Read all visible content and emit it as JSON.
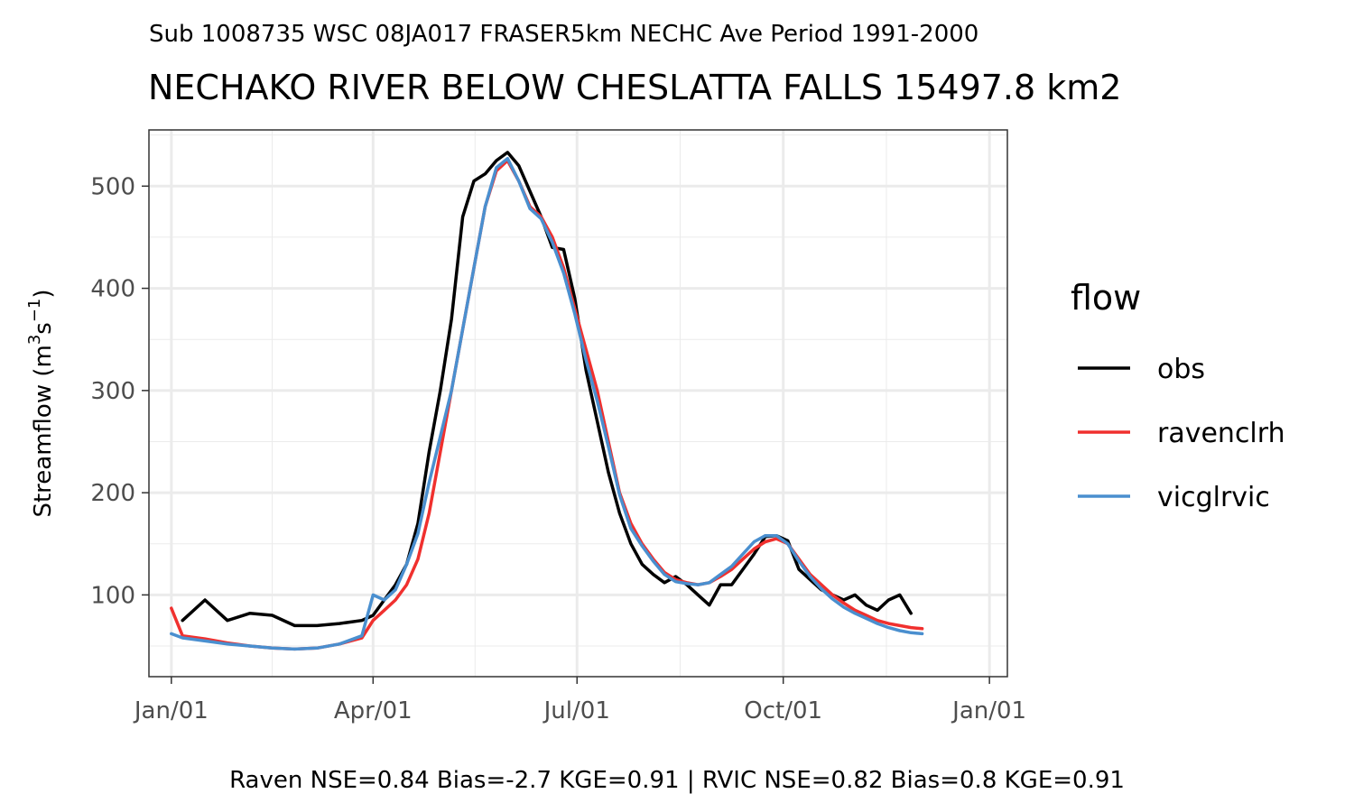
{
  "chart_data": {
    "type": "line",
    "subtitle": "Sub 1008735 WSC 08JA017 FRASER5km NECHC Ave Period 1991-2000",
    "title": "NECHAKO RIVER BELOW CHESLATTA FALLS 15497.8 km2",
    "ylabel": "Streamflow (m3s-1)",
    "ylabel_parts": {
      "prefix": "Streamflow (m",
      "sup1": "3",
      "mid": "s",
      "sup2": "−1",
      "suffix": ")"
    },
    "xlabel": "",
    "caption": "Raven NSE=0.84 Bias=-2.7 KGE=0.91 | RVIC NSE=0.82 Bias=0.8 KGE=0.91",
    "ylim": [
      20,
      555
    ],
    "xlim": [
      "Dec/22",
      "Jan/09"
    ],
    "x_unit": "date",
    "x_ticks": [
      "Jan/01",
      "Apr/01",
      "Jul/01",
      "Oct/01",
      "Jan/01"
    ],
    "x_tick_dates": [
      "Jan/01",
      "Apr/01",
      "Jul/01",
      "Oct/01",
      "Jan/01 (next year)"
    ],
    "y_ticks": [
      100,
      200,
      300,
      400,
      500
    ],
    "grid": true,
    "legend_title": "flow",
    "legend_position": "right",
    "x_dates": [
      "Jan/01",
      "Jan/06",
      "Jan/16",
      "Jan/26",
      "Feb/05",
      "Feb/15",
      "Feb/25",
      "Mar/07",
      "Mar/17",
      "Mar/27",
      "Apr/01",
      "Apr/06",
      "Apr/11",
      "Apr/16",
      "Apr/21",
      "Apr/26",
      "May/01",
      "May/06",
      "May/11",
      "May/16",
      "May/21",
      "May/26",
      "May/31",
      "Jun/05",
      "Jun/10",
      "Jun/15",
      "Jun/20",
      "Jun/25",
      "Jun/30",
      "Jul/05",
      "Jul/10",
      "Jul/15",
      "Jul/20",
      "Jul/25",
      "Jul/30",
      "Aug/04",
      "Aug/09",
      "Aug/14",
      "Aug/19",
      "Aug/24",
      "Aug/29",
      "Sep/03",
      "Sep/08",
      "Sep/13",
      "Sep/18",
      "Sep/23",
      "Sep/28",
      "Oct/03",
      "Oct/08",
      "Oct/13",
      "Oct/18",
      "Oct/23",
      "Oct/28",
      "Nov/02",
      "Nov/07",
      "Nov/12",
      "Nov/17",
      "Nov/22",
      "Nov/27",
      "Dec/02",
      "Dec/07",
      "Dec/12",
      "Dec/17",
      "Dec/22",
      "Dec/27",
      "Dec/31"
    ],
    "series": [
      {
        "name": "obs",
        "color": "#000000",
        "values": [
          null,
          75,
          95,
          75,
          82,
          80,
          70,
          70,
          72,
          75,
          80,
          95,
          110,
          130,
          170,
          240,
          300,
          370,
          470,
          505,
          512,
          525,
          533,
          520,
          495,
          470,
          440,
          438,
          390,
          320,
          270,
          220,
          180,
          150,
          130,
          120,
          112,
          118,
          110,
          100,
          90,
          110,
          110,
          125,
          140,
          157,
          158,
          153,
          125,
          115,
          105,
          100,
          95,
          100,
          90,
          85,
          95,
          100,
          82,
          null,
          null,
          null,
          null,
          null,
          null,
          null
        ]
      },
      {
        "name": "ravenclrh",
        "color": "#f0302e",
        "values": [
          87,
          60,
          57,
          53,
          50,
          48,
          47,
          48,
          52,
          58,
          75,
          85,
          95,
          110,
          135,
          180,
          240,
          300,
          360,
          420,
          480,
          515,
          525,
          505,
          480,
          470,
          450,
          420,
          380,
          340,
          300,
          250,
          200,
          170,
          150,
          135,
          122,
          115,
          112,
          110,
          112,
          118,
          125,
          135,
          145,
          152,
          155,
          150,
          135,
          120,
          110,
          100,
          92,
          85,
          80,
          75,
          72,
          70,
          68,
          67,
          null,
          null,
          null,
          null,
          null,
          null
        ]
      },
      {
        "name": "vicglrvic",
        "color": "#4a8fcf",
        "values": [
          62,
          58,
          55,
          52,
          50,
          48,
          47,
          48,
          52,
          60,
          100,
          95,
          105,
          130,
          160,
          210,
          255,
          300,
          360,
          420,
          480,
          518,
          527,
          505,
          478,
          468,
          445,
          415,
          375,
          330,
          290,
          245,
          198,
          165,
          148,
          133,
          120,
          113,
          111,
          110,
          112,
          120,
          128,
          140,
          152,
          158,
          158,
          150,
          133,
          118,
          106,
          96,
          88,
          82,
          77,
          72,
          68,
          65,
          63,
          62,
          null,
          null,
          null,
          null,
          null,
          null
        ]
      }
    ]
  }
}
